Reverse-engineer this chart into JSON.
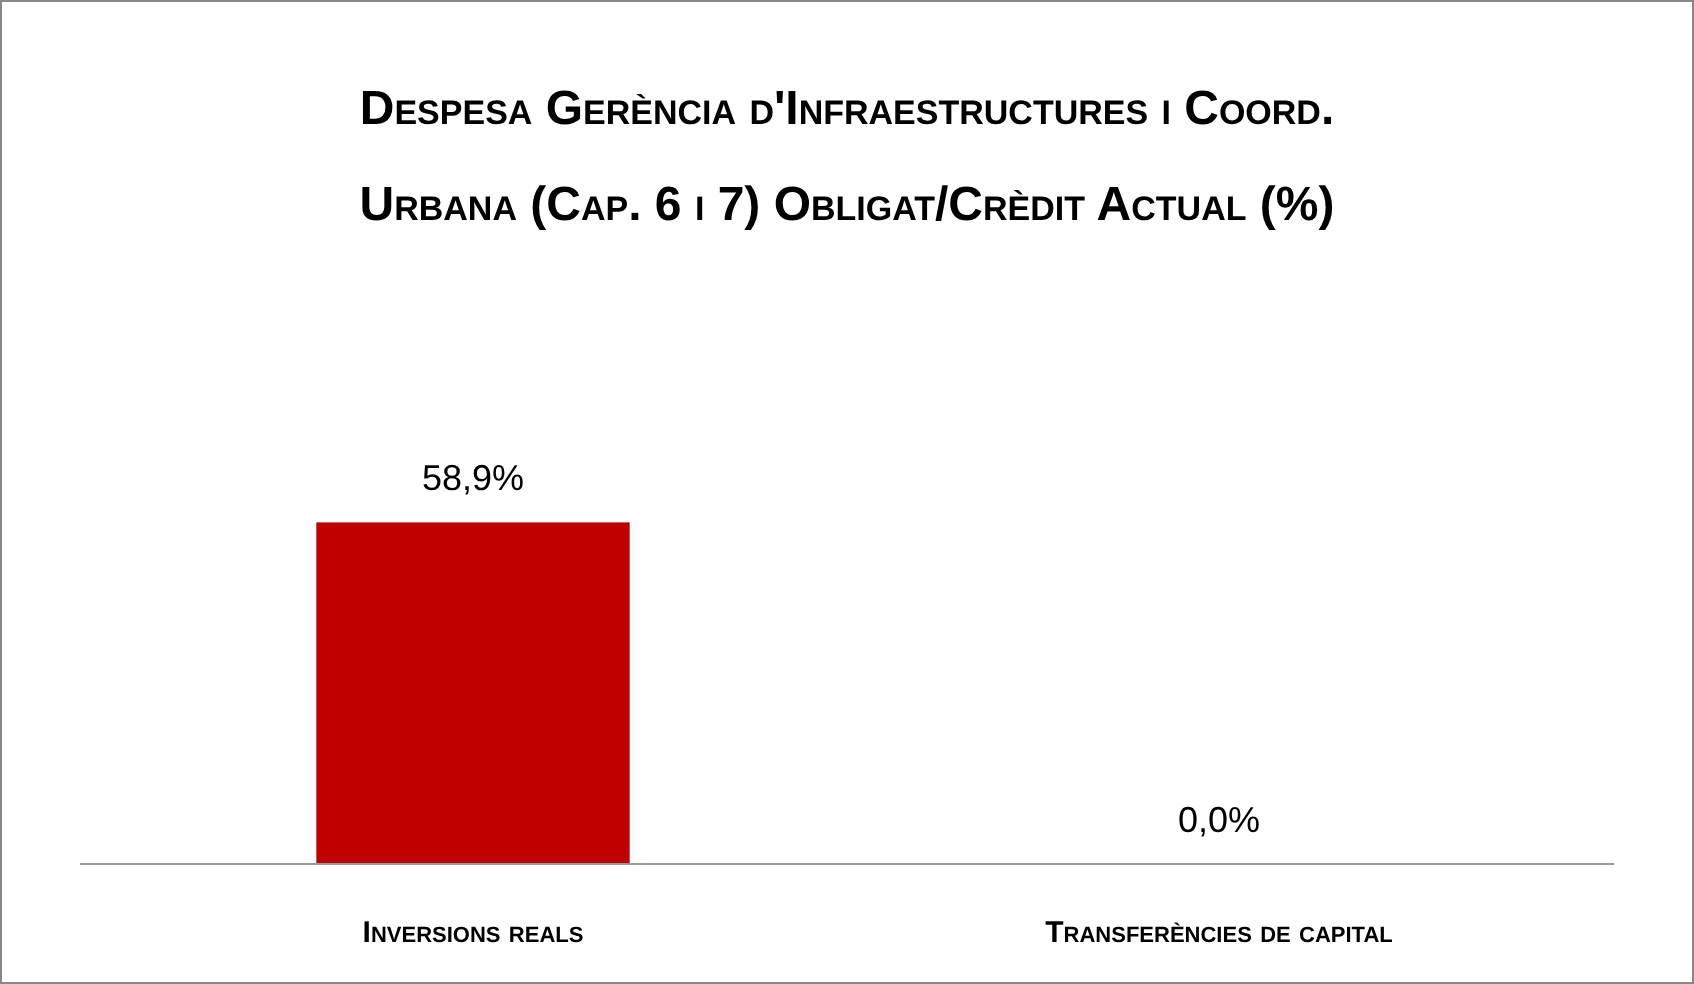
{
  "chart_data": {
    "type": "bar",
    "title": "Despesa Gerència d'Infraestructures i Coord. Urbana (Cap. 6 i 7) Obligat/Crèdit Actual (%)",
    "categories": [
      "Inversions reals",
      "Transferències de capital"
    ],
    "values": [
      58.9,
      0.0
    ],
    "color": "#c00000",
    "value_labels": [
      "58,9%",
      "0,0%"
    ]
  }
}
